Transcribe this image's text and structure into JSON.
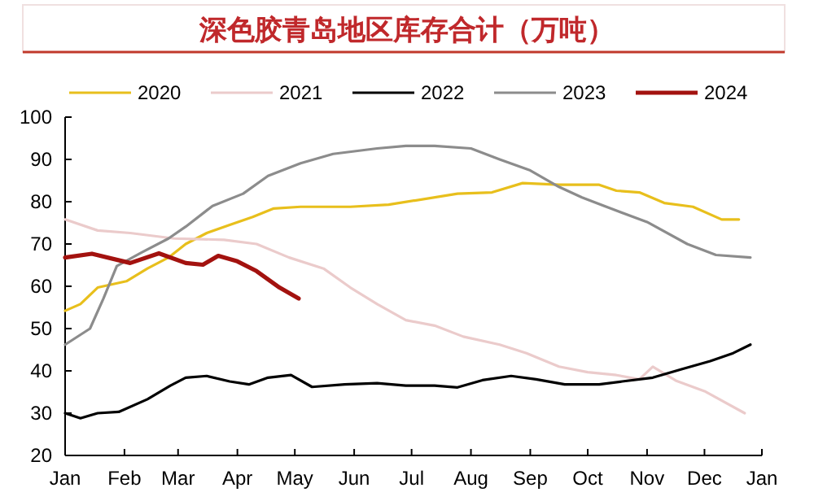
{
  "chart_data": {
    "type": "line",
    "title": "深色胶青岛地区库存合计（万吨）",
    "legend": "top",
    "grid": false,
    "marker": "none",
    "line_style": "solid",
    "xlim": [
      "--01-01",
      "--12-31"
    ],
    "xticks": [
      {
        "value": "--01-01",
        "label": "Jan"
      },
      {
        "value": "--02-01",
        "label": "Feb"
      },
      {
        "value": "--03-01",
        "label": "Mar"
      },
      {
        "value": "--04-01",
        "label": "Apr"
      },
      {
        "value": "--05-01",
        "label": "May"
      },
      {
        "value": "--06-01",
        "label": "Jun"
      },
      {
        "value": "--07-01",
        "label": "Jul"
      },
      {
        "value": "--08-01",
        "label": "Aug"
      },
      {
        "value": "--09-01",
        "label": "Sep"
      },
      {
        "value": "--10-01",
        "label": "Oct"
      },
      {
        "value": "--11-01",
        "label": "Nov"
      },
      {
        "value": "--12-01",
        "label": "Dec"
      }
    ],
    "annotations": [
      "Jan"
    ],
    "ylim": [
      20,
      100
    ],
    "yticks": [
      20,
      30,
      40,
      50,
      60,
      70,
      80,
      90,
      100
    ],
    "series": [
      {
        "name": "2020",
        "color": "#e8bf1c",
        "x": [
          "--01-01",
          "--01-09",
          "--01-18",
          "--02-02",
          "--02-13",
          "--02-24",
          "--03-05",
          "--03-16",
          "--03-28",
          "--04-09",
          "--04-20",
          "--05-04",
          "--05-30",
          "--06-19",
          "--07-25",
          "--08-12",
          "--08-28",
          "--09-16",
          "--10-07",
          "--10-16",
          "--10-28",
          "--11-10",
          "--11-25",
          "--12-10",
          "--12-19"
        ],
        "values": [
          54.2,
          55.8,
          59.7,
          61.2,
          64.2,
          66.8,
          70,
          72.6,
          74.5,
          76.4,
          78.4,
          78.8,
          78.8,
          79.3,
          81.9,
          82.2,
          84.4,
          84,
          84,
          82.6,
          82.2,
          79.7,
          78.8,
          75.8,
          75.8
        ]
      },
      {
        "name": "2021",
        "color": "#ebcbcb",
        "x": [
          "--01-01",
          "--01-18",
          "--02-04",
          "--02-27",
          "--03-25",
          "--04-11",
          "--04-28",
          "--05-16",
          "--05-30",
          "--06-13",
          "--06-28",
          "--07-13",
          "--07-28",
          "--08-16",
          "--08-30",
          "--09-16",
          "--10-01",
          "--10-16",
          "--10-28",
          "--11-04",
          "--11-16",
          "--12-01",
          "--12-22"
        ],
        "values": [
          75.8,
          73.2,
          72.6,
          71.3,
          71,
          70,
          66.8,
          64.2,
          59.7,
          55.8,
          52,
          50.7,
          48.1,
          46.2,
          44.2,
          41,
          39.7,
          39,
          38,
          41,
          37.7,
          35.2,
          30
        ]
      },
      {
        "name": "2022",
        "color": "#000000",
        "x": [
          "--01-01",
          "--01-09",
          "--01-18",
          "--01-29",
          "--02-13",
          "--02-25",
          "--03-05",
          "--03-16",
          "--03-28",
          "--04-07",
          "--04-17",
          "--04-29",
          "--05-10",
          "--05-27",
          "--06-13",
          "--06-28",
          "--07-13",
          "--07-25",
          "--08-07",
          "--08-22",
          "--09-04",
          "--09-19",
          "--10-07",
          "--10-19",
          "--11-04",
          "--11-19",
          "--12-04",
          "--12-16",
          "--12-25"
        ],
        "values": [
          30,
          28.8,
          30,
          30.3,
          33.3,
          36.5,
          38.4,
          38.8,
          37.5,
          36.8,
          38.4,
          39,
          36.2,
          36.8,
          37.1,
          36.5,
          36.5,
          36.1,
          37.8,
          38.8,
          38,
          36.8,
          36.8,
          37.5,
          38.4,
          40.4,
          42.3,
          44.2,
          46.2
        ]
      },
      {
        "name": "2023",
        "color": "#8c8c8c",
        "x": [
          "--01-01",
          "--01-14",
          "--01-21",
          "--01-28",
          "--02-10",
          "--02-24",
          "--03-05",
          "--03-19",
          "--04-04",
          "--04-17",
          "--05-04",
          "--05-21",
          "--06-13",
          "--06-28",
          "--07-13",
          "--08-01",
          "--08-16",
          "--09-01",
          "--09-16",
          "--09-28",
          "--10-13",
          "--11-01",
          "--11-22",
          "--12-07",
          "--12-25"
        ],
        "values": [
          46.2,
          50,
          57.1,
          64.8,
          68,
          71.3,
          74.1,
          79,
          81.9,
          86.1,
          89.1,
          91.3,
          92.6,
          93.2,
          93.2,
          92.6,
          90,
          87.4,
          83.5,
          81,
          78.4,
          75.2,
          70,
          67.4,
          66.8
        ]
      },
      {
        "name": "2024",
        "color": "#a3120f",
        "x": [
          "--01-01",
          "--01-15",
          "--02-04",
          "--02-19",
          "--03-05",
          "--03-14",
          "--03-22",
          "--04-01",
          "--04-11",
          "--04-23",
          "--05-03"
        ],
        "values": [
          66.8,
          67.7,
          65.5,
          67.8,
          65.5,
          65.1,
          67.2,
          65.9,
          63.6,
          59.7,
          57.1
        ]
      }
    ]
  }
}
